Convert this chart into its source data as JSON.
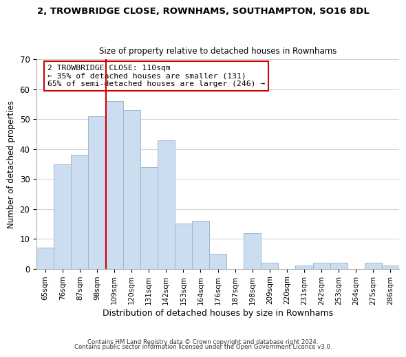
{
  "title_line1": "2, TROWBRIDGE CLOSE, ROWNHAMS, SOUTHAMPTON, SO16 8DL",
  "title_line2": "Size of property relative to detached houses in Rownhams",
  "xlabel": "Distribution of detached houses by size in Rownhams",
  "ylabel": "Number of detached properties",
  "bar_labels": [
    "65sqm",
    "76sqm",
    "87sqm",
    "98sqm",
    "109sqm",
    "120sqm",
    "131sqm",
    "142sqm",
    "153sqm",
    "164sqm",
    "176sqm",
    "187sqm",
    "198sqm",
    "209sqm",
    "220sqm",
    "231sqm",
    "242sqm",
    "253sqm",
    "264sqm",
    "275sqm",
    "286sqm"
  ],
  "bar_heights": [
    7,
    35,
    38,
    51,
    56,
    53,
    34,
    43,
    15,
    16,
    5,
    0,
    12,
    2,
    0,
    1,
    2,
    2,
    0,
    2,
    1
  ],
  "bar_color": "#ccddf0",
  "bar_edge_color": "#9ab8d8",
  "vline_x_index": 4,
  "vline_color": "#cc0000",
  "annotation_title": "2 TROWBRIDGE CLOSE: 110sqm",
  "annotation_line1": "← 35% of detached houses are smaller (131)",
  "annotation_line2": "65% of semi-detached houses are larger (246) →",
  "annotation_box_edge_color": "#cc0000",
  "annotation_box_face_color": "#ffffff",
  "ylim": [
    0,
    70
  ],
  "yticks": [
    0,
    10,
    20,
    30,
    40,
    50,
    60,
    70
  ],
  "footer_line1": "Contains HM Land Registry data © Crown copyright and database right 2024.",
  "footer_line2": "Contains public sector information licensed under the Open Government Licence v3.0.",
  "background_color": "#ffffff",
  "grid_color": "#d0d0d0"
}
